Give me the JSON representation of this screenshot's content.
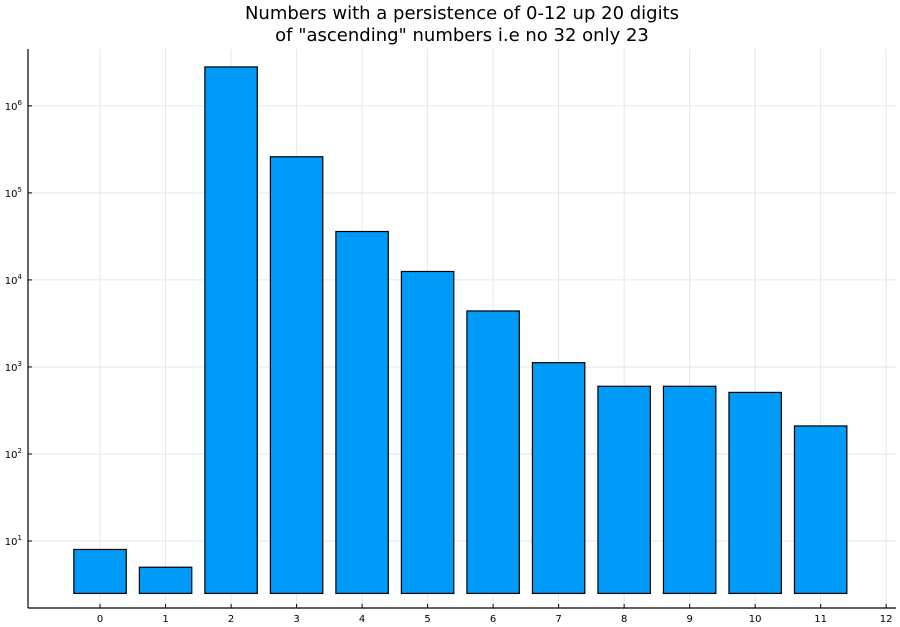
{
  "chart_data": {
    "type": "bar",
    "title_lines": [
      "Numbers with a persistence of 0-12 up 20 digits",
      "of \"ascending\" numbers i.e no 32 only 23"
    ],
    "xlabel": "",
    "ylabel": "",
    "categories": [
      0,
      1,
      2,
      3,
      4,
      5,
      6,
      7,
      8,
      9,
      10,
      11
    ],
    "values": [
      8,
      5,
      2800000,
      260000,
      36000,
      12500,
      4400,
      1120,
      600,
      600,
      510,
      210
    ],
    "bar_baseline": 2.5,
    "x_ticks": [
      0,
      1,
      2,
      3,
      4,
      5,
      6,
      7,
      8,
      9,
      10,
      11,
      12
    ],
    "xlim": [
      -1.1,
      12.15
    ],
    "y_scale": "log10",
    "y_ticks": [
      {
        "base": "10",
        "exp": "1"
      },
      {
        "base": "10",
        "exp": "2"
      },
      {
        "base": "10",
        "exp": "3"
      },
      {
        "base": "10",
        "exp": "4"
      },
      {
        "base": "10",
        "exp": "5"
      },
      {
        "base": "10",
        "exp": "6"
      }
    ],
    "ylim": [
      1.7,
      4500000
    ],
    "grid": true,
    "legend": "none",
    "colors": {
      "bar_fill": "#009af9",
      "bar_edge": "#000000",
      "grid": "#e6e6e6",
      "axis": "#000000"
    }
  }
}
